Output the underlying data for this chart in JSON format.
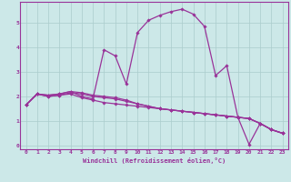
{
  "xlabel": "Windchill (Refroidissement éolien,°C)",
  "xlim": [
    -0.5,
    23.5
  ],
  "ylim": [
    -0.15,
    5.85
  ],
  "yticks": [
    0,
    1,
    2,
    3,
    4,
    5
  ],
  "xticks": [
    0,
    1,
    2,
    3,
    4,
    5,
    6,
    7,
    8,
    9,
    10,
    11,
    12,
    13,
    14,
    15,
    16,
    17,
    18,
    19,
    20,
    21,
    22,
    23
  ],
  "background_color": "#cce8e8",
  "grid_color": "#aacccc",
  "line_color": "#993399",
  "line_width": 0.9,
  "marker": "D",
  "marker_size": 1.8,
  "curves": [
    [
      0,
      1.65,
      1,
      2.1,
      2,
      2.05,
      3,
      2.1,
      4,
      2.2,
      5,
      2.0,
      6,
      1.9,
      7,
      3.9,
      8,
      3.65,
      9,
      2.5,
      10,
      4.6,
      11,
      5.1,
      12,
      5.3,
      13,
      5.45,
      14,
      5.55,
      15,
      5.35,
      16,
      4.85,
      17,
      2.85,
      18,
      3.25,
      19,
      1.15,
      20,
      0.05,
      21,
      0.9,
      22,
      0.65,
      23,
      0.5
    ],
    [
      0,
      1.65,
      1,
      2.1,
      2,
      2.0,
      3,
      2.05,
      4,
      2.1,
      5,
      1.95,
      6,
      1.85,
      7,
      1.75,
      8,
      1.7,
      9,
      1.65,
      10,
      1.6,
      11,
      1.55,
      12,
      1.5,
      13,
      1.45,
      14,
      1.4,
      15,
      1.35,
      16,
      1.3,
      17,
      1.25,
      18,
      1.2,
      19,
      1.15,
      20,
      1.1,
      21,
      0.9,
      22,
      0.65,
      23,
      0.5
    ],
    [
      0,
      1.65,
      1,
      2.1,
      2,
      2.0,
      3,
      2.05,
      4,
      2.15,
      5,
      2.1,
      6,
      2.0,
      7,
      1.95,
      8,
      1.9,
      9,
      1.8,
      10,
      1.7,
      11,
      1.6,
      12,
      1.5,
      13,
      1.45,
      14,
      1.4,
      15,
      1.35,
      16,
      1.3,
      17,
      1.25,
      18,
      1.2,
      19,
      1.15,
      20,
      1.1,
      21,
      0.9,
      22,
      0.65,
      23,
      0.5
    ],
    [
      0,
      1.65,
      1,
      2.1,
      2,
      2.05,
      3,
      2.1,
      4,
      2.2,
      5,
      2.15,
      6,
      2.05,
      7,
      2.0,
      8,
      1.95,
      9,
      1.85,
      10,
      1.7,
      11,
      1.6,
      12,
      1.5,
      13,
      1.45,
      14,
      1.4,
      15,
      1.35,
      16,
      1.3,
      17,
      1.25,
      18,
      1.2,
      19,
      1.15,
      20,
      1.1,
      21,
      0.9,
      22,
      0.65,
      23,
      0.5
    ]
  ]
}
